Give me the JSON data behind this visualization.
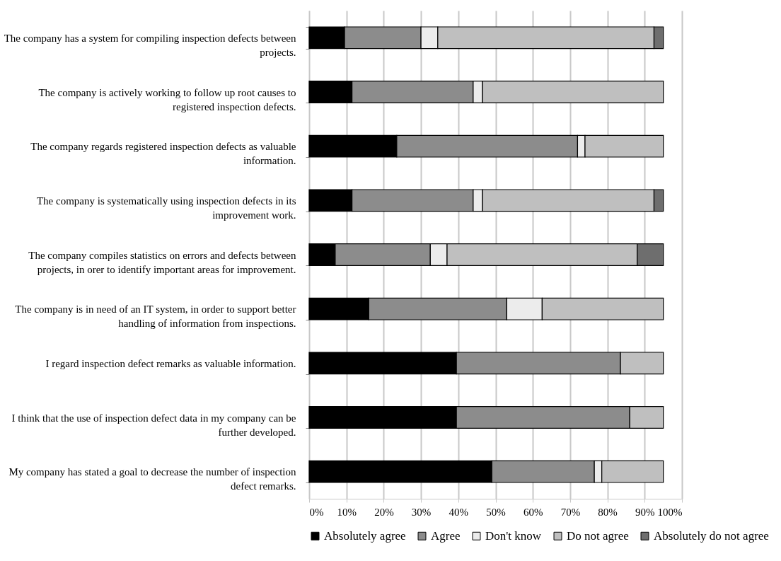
{
  "chart_data": {
    "type": "bar",
    "orientation": "horizontal",
    "stacked": true,
    "categories": [
      "The company has a system for compiling inspection defects between projects.",
      "The company is actively working to follow up root causes to registered inspection defects.",
      "The company regards registered inspection defects as valuable information.",
      "The company is systematically using inspection defects in its improvement work.",
      "The company compiles statistics on errors and defects between projects, in orer to identify important areas for improvement.",
      "The company is in need of an IT system, in order to support better handling of information from inspections.",
      "I regard inspection defect remarks as valuable information.",
      "I think that the use of inspection defect data in my company can be further developed.",
      "My company has stated a goal to decrease the number of inspection defect remarks."
    ],
    "series": [
      {
        "name": "Absolutely agree",
        "color": "#000000",
        "values": [
          9.5,
          11.5,
          23.5,
          11.5,
          7,
          16,
          39.5,
          39.5,
          49
        ]
      },
      {
        "name": "Agree",
        "color": "#8c8c8c",
        "values": [
          20.5,
          32.5,
          48.5,
          32.5,
          25.5,
          37,
          44,
          46.5,
          27.5
        ]
      },
      {
        "name": "Don't know",
        "color": "#ececec",
        "values": [
          4.5,
          2.5,
          2,
          2.5,
          4.5,
          9.5,
          null,
          null,
          2
        ]
      },
      {
        "name": "Do not agree",
        "color": "#bfbfbf",
        "values": [
          58,
          48.5,
          21,
          46,
          51,
          32.5,
          11.5,
          9,
          16.5
        ]
      },
      {
        "name": "Absolutely do not agree",
        "color": "#6e6e6e",
        "values": [
          2.5,
          null,
          null,
          2.5,
          7,
          null,
          null,
          null,
          null
        ]
      }
    ],
    "xlim": [
      0,
      100
    ],
    "xticks": [
      {
        "value": 0,
        "label": "0%"
      },
      {
        "value": 10,
        "label": "10%"
      },
      {
        "value": 20,
        "label": "20%"
      },
      {
        "value": 30,
        "label": "30%"
      },
      {
        "value": 40,
        "label": "40%"
      },
      {
        "value": 50,
        "label": "50%"
      },
      {
        "value": 60,
        "label": "60%"
      },
      {
        "value": 70,
        "label": "70%"
      },
      {
        "value": 80,
        "label": "80%"
      },
      {
        "value": 90,
        "label": "90%"
      },
      {
        "value": 100,
        "label": "100%"
      }
    ],
    "grid": "x",
    "legend": "bottom"
  }
}
